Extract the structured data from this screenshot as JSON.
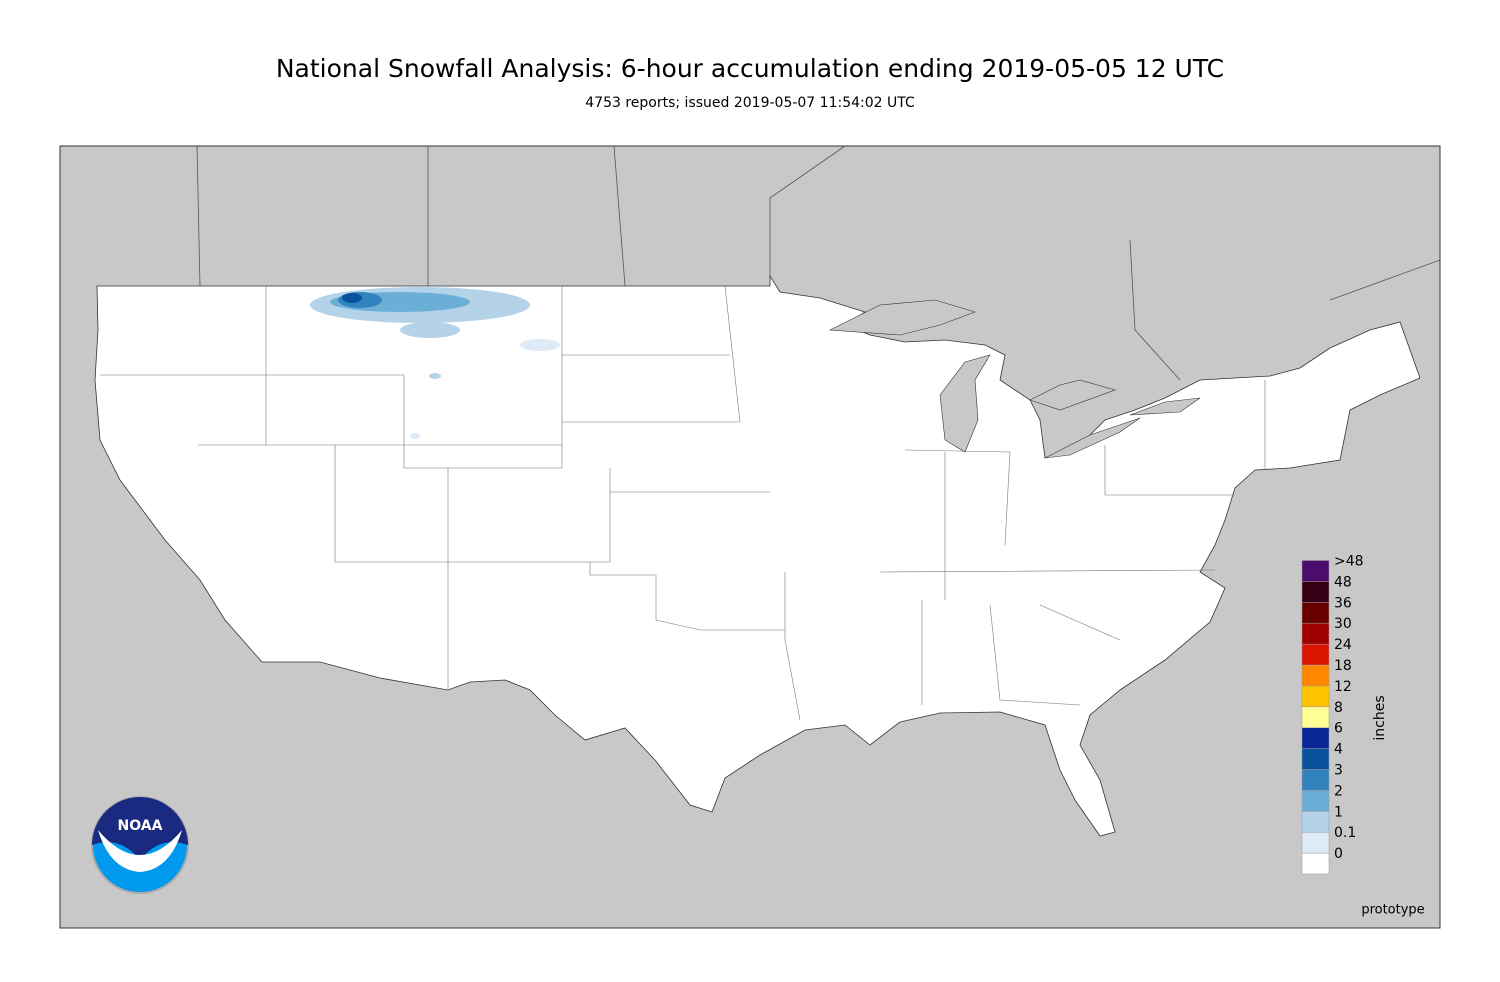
{
  "header": {
    "title": "National Snowfall Analysis: 6-hour accumulation ending 2019-05-05 12 UTC",
    "subtitle": "4753 reports; issued 2019-05-07 11:54:02 UTC"
  },
  "legend": {
    "title": "inches",
    "items": [
      {
        "label": "0",
        "color": "#ffffff"
      },
      {
        "label": "0.1",
        "color": "#deebf7"
      },
      {
        "label": "1",
        "color": "#b4d3e9"
      },
      {
        "label": "2",
        "color": "#6baed6"
      },
      {
        "label": "3",
        "color": "#3182bd"
      },
      {
        "label": "4",
        "color": "#08519c"
      },
      {
        "label": "6",
        "color": "#082694"
      },
      {
        "label": "8",
        "color": "#ffff96"
      },
      {
        "label": "12",
        "color": "#ffc400"
      },
      {
        "label": "18",
        "color": "#ff8700"
      },
      {
        "label": "24",
        "color": "#db1400"
      },
      {
        "label": "30",
        "color": "#9e0000"
      },
      {
        "label": "36",
        "color": "#690000"
      },
      {
        "label": "48",
        "color": "#360016"
      },
      {
        "label": ">48",
        "color": "#4b0c6b"
      }
    ]
  },
  "logo": {
    "text": "NOAA"
  },
  "footer": {
    "note": "prototype"
  }
}
